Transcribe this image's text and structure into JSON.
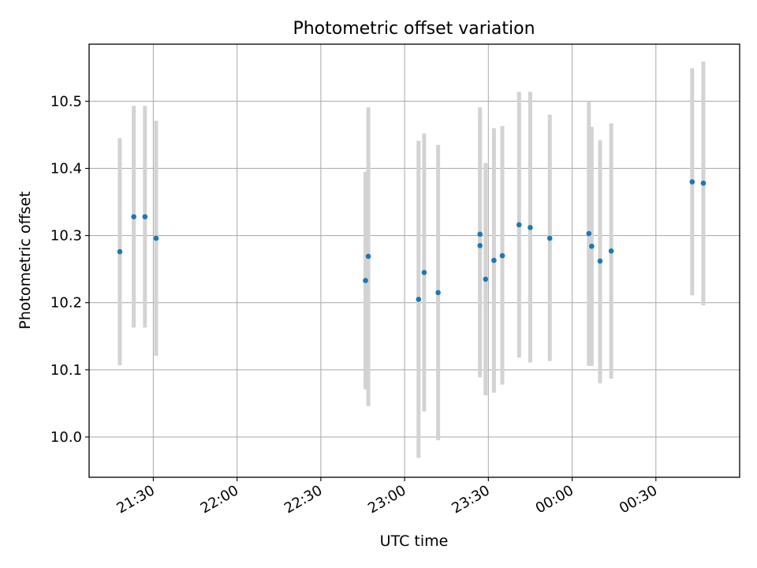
{
  "chart_data": {
    "type": "scatter",
    "title": "Photometric offset variation",
    "xlabel": "UTC time",
    "ylabel": "Photometric offset",
    "x_format": "HH:MM",
    "xlim": [
      "21:07",
      "01:00"
    ],
    "ylim": [
      9.94,
      10.585
    ],
    "x_ticks": [
      "21:30",
      "22:00",
      "22:30",
      "23:00",
      "23:30",
      "00:00",
      "00:30"
    ],
    "y_ticks": [
      "10.0",
      "10.1",
      "10.2",
      "10.3",
      "10.4",
      "10.5"
    ],
    "grid": true,
    "marker_color": "#1f77b4",
    "errorbar_color": "#d3d3d3",
    "series": [
      {
        "points": [
          {
            "x": "21:18",
            "y": 10.276,
            "yerr": [
              10.107,
              10.445
            ]
          },
          {
            "x": "21:23",
            "y": 10.328,
            "yerr": [
              10.163,
              10.493
            ]
          },
          {
            "x": "21:27",
            "y": 10.328,
            "yerr": [
              10.163,
              10.493
            ]
          },
          {
            "x": "21:31",
            "y": 10.296,
            "yerr": [
              10.121,
              10.471
            ]
          },
          {
            "x": "22:46",
            "y": 10.233,
            "yerr": [
              10.071,
              10.395
            ]
          },
          {
            "x": "22:47",
            "y": 10.269,
            "yerr": [
              10.046,
              10.491
            ]
          },
          {
            "x": "23:05",
            "y": 10.205,
            "yerr": [
              9.969,
              10.441
            ]
          },
          {
            "x": "23:07",
            "y": 10.245,
            "yerr": [
              10.038,
              10.452
            ]
          },
          {
            "x": "23:12",
            "y": 10.215,
            "yerr": [
              9.995,
              10.435
            ]
          },
          {
            "x": "23:27",
            "y": 10.302,
            "yerr": [
              10.112,
              10.491
            ]
          },
          {
            "x": "23:27",
            "y": 10.285,
            "yerr": [
              10.089,
              10.481
            ]
          },
          {
            "x": "23:29",
            "y": 10.235,
            "yerr": [
              10.062,
              10.408
            ]
          },
          {
            "x": "23:32",
            "y": 10.263,
            "yerr": [
              10.066,
              10.46
            ]
          },
          {
            "x": "23:35",
            "y": 10.27,
            "yerr": [
              10.078,
              10.463
            ]
          },
          {
            "x": "23:41",
            "y": 10.316,
            "yerr": [
              10.118,
              10.514
            ]
          },
          {
            "x": "23:45",
            "y": 10.312,
            "yerr": [
              10.111,
              10.514
            ]
          },
          {
            "x": "23:52",
            "y": 10.296,
            "yerr": [
              10.113,
              10.48
            ]
          },
          {
            "x": "00:06",
            "y": 10.303,
            "yerr": [
              10.106,
              10.5
            ]
          },
          {
            "x": "00:07",
            "y": 10.284,
            "yerr": [
              10.106,
              10.462
            ]
          },
          {
            "x": "00:10",
            "y": 10.262,
            "yerr": [
              10.08,
              10.442
            ]
          },
          {
            "x": "00:14",
            "y": 10.277,
            "yerr": [
              10.087,
              10.467
            ]
          },
          {
            "x": "00:43",
            "y": 10.38,
            "yerr": [
              10.211,
              10.549
            ]
          },
          {
            "x": "00:47",
            "y": 10.378,
            "yerr": [
              10.196,
              10.559
            ]
          }
        ]
      }
    ]
  }
}
